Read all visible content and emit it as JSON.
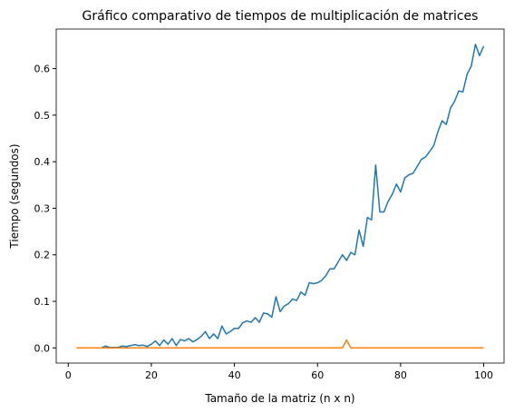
{
  "chart_data": {
    "type": "line",
    "title": "Gráfico comparativo de tiempos de multiplicación de matrices",
    "x_label": "Tamaño de la matriz (n x n)",
    "y_label": "Tiempo (segundos)",
    "x": [
      2,
      3,
      4,
      5,
      6,
      7,
      8,
      9,
      10,
      11,
      12,
      13,
      14,
      15,
      16,
      17,
      18,
      19,
      20,
      21,
      22,
      23,
      24,
      25,
      26,
      27,
      28,
      29,
      30,
      31,
      32,
      33,
      34,
      35,
      36,
      37,
      38,
      39,
      40,
      41,
      42,
      43,
      44,
      45,
      46,
      47,
      48,
      49,
      50,
      51,
      52,
      53,
      54,
      55,
      56,
      57,
      58,
      59,
      60,
      61,
      62,
      63,
      64,
      65,
      66,
      67,
      68,
      69,
      70,
      71,
      72,
      73,
      74,
      75,
      76,
      77,
      78,
      79,
      80,
      81,
      82,
      83,
      84,
      85,
      86,
      87,
      88,
      89,
      90,
      91,
      92,
      93,
      94,
      95,
      96,
      97,
      98,
      99,
      100
    ],
    "series": [
      {
        "color": "#1f77b4",
        "values": [
          0,
          0,
          0,
          0,
          0,
          0,
          0,
          0.004,
          0.001,
          0.001,
          0.001,
          0.004,
          0.003,
          0.005,
          0.007,
          0.005,
          0.006,
          0.003,
          0.008,
          0.015,
          0.005,
          0.017,
          0.008,
          0.02,
          0.005,
          0.018,
          0.015,
          0.02,
          0.013,
          0.018,
          0.025,
          0.035,
          0.02,
          0.03,
          0.02,
          0.047,
          0.03,
          0.035,
          0.042,
          0.042,
          0.054,
          0.058,
          0.055,
          0.065,
          0.055,
          0.075,
          0.073,
          0.066,
          0.11,
          0.078,
          0.09,
          0.095,
          0.105,
          0.102,
          0.12,
          0.113,
          0.14,
          0.138,
          0.14,
          0.145,
          0.155,
          0.17,
          0.17,
          0.185,
          0.2,
          0.188,
          0.205,
          0.2,
          0.253,
          0.218,
          0.28,
          0.275,
          0.393,
          0.292,
          0.292,
          0.315,
          0.33,
          0.352,
          0.335,
          0.365,
          0.372,
          0.375,
          0.39,
          0.405,
          0.41,
          0.422,
          0.435,
          0.465,
          0.488,
          0.48,
          0.515,
          0.53,
          0.552,
          0.55,
          0.588,
          0.605,
          0.652,
          0.628,
          0.648
        ]
      },
      {
        "color": "#ff7f0e",
        "values": [
          0,
          0,
          0,
          0,
          0,
          0,
          0,
          0,
          0,
          0,
          0,
          0,
          0,
          0,
          0,
          0,
          0,
          0,
          0,
          0,
          0,
          0,
          0,
          0,
          0,
          0,
          0,
          0,
          0,
          0,
          0,
          0,
          0,
          0,
          0,
          0,
          0,
          0,
          0,
          0,
          0,
          0,
          0,
          0,
          0,
          0,
          0,
          0,
          0,
          0,
          0,
          0,
          0,
          0,
          0,
          0,
          0,
          0,
          0,
          0,
          0,
          0,
          0,
          0,
          0,
          0.017,
          0,
          0,
          0,
          0,
          0,
          0,
          0,
          0,
          0,
          0,
          0,
          0,
          0,
          0,
          0,
          0,
          0,
          0,
          0,
          0,
          0,
          0,
          0,
          0,
          0,
          0,
          0,
          0,
          0,
          0,
          0,
          0,
          0
        ]
      }
    ],
    "xlim": [
      -2.9,
      104.9
    ],
    "xticks": [
      0,
      20,
      40,
      60,
      80,
      100
    ],
    "ylim": [
      -0.0326,
      0.685
    ],
    "yticks": [
      {
        "value": 0,
        "label": "0.0"
      },
      0.1,
      0.2,
      0.3,
      0.4,
      0.5,
      0.6
    ],
    "grid": false
  }
}
